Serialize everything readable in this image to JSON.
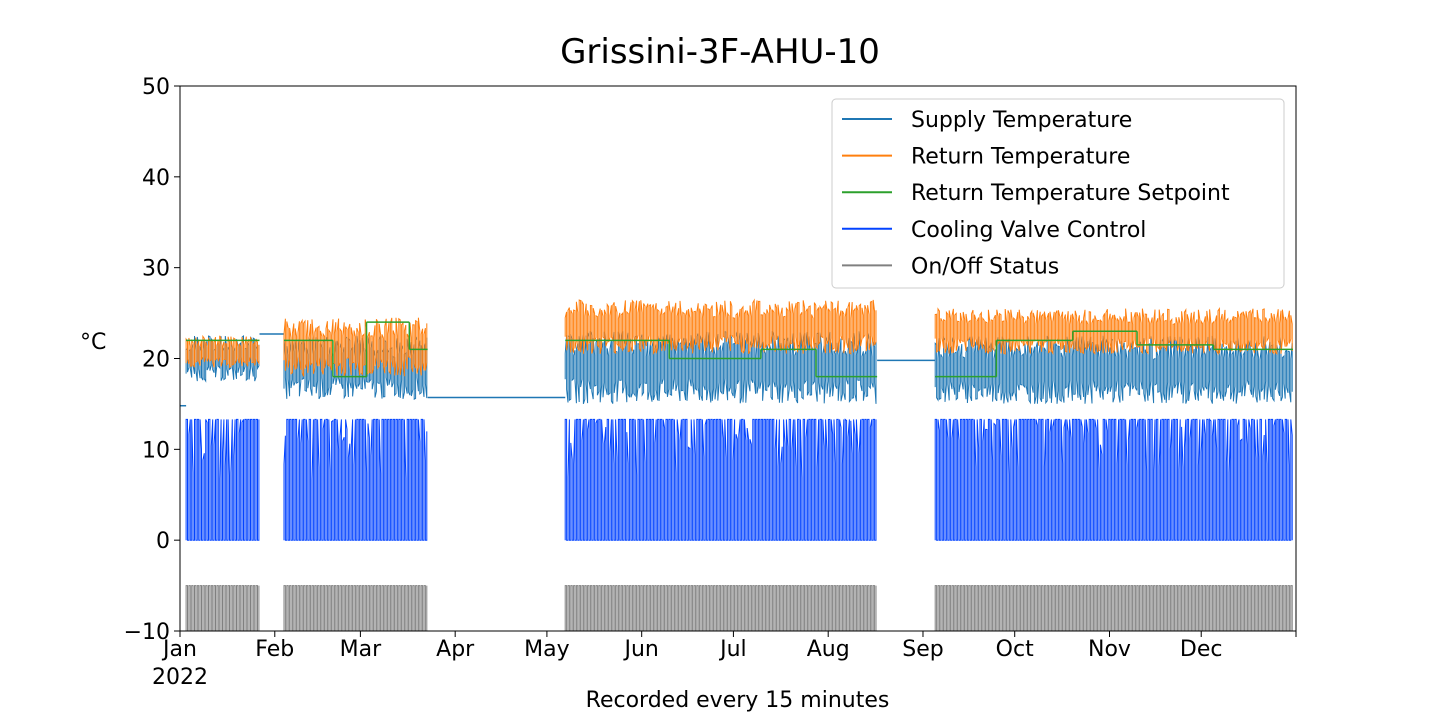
{
  "chart_data": {
    "type": "line",
    "title": "Grissini-3F-AHU-10",
    "xlabel": "Recorded every 15 minutes",
    "ylabel": "°C",
    "ylim": [
      -10,
      50
    ],
    "xlim": [
      "2022-01-01",
      "2022-12-31"
    ],
    "y_ticks": [
      "50",
      "40",
      "30",
      "20",
      "10",
      "0",
      "−10"
    ],
    "x_ticks": [
      {
        "date": "2022-01-01",
        "label": "Jan",
        "sublabel": "2022"
      },
      {
        "date": "2022-02-01",
        "label": "Feb"
      },
      {
        "date": "2022-03-01",
        "label": "Mar"
      },
      {
        "date": "2022-04-01",
        "label": "Apr"
      },
      {
        "date": "2022-05-01",
        "label": "May"
      },
      {
        "date": "2022-06-01",
        "label": "Jun"
      },
      {
        "date": "2022-07-01",
        "label": "Jul"
      },
      {
        "date": "2022-08-01",
        "label": "Aug"
      },
      {
        "date": "2022-09-01",
        "label": "Sep"
      },
      {
        "date": "2022-10-01",
        "label": "Oct"
      },
      {
        "date": "2022-11-01",
        "label": "Nov"
      },
      {
        "date": "2022-12-01",
        "label": "Dec"
      }
    ],
    "grid": false,
    "legend_position": "top-right",
    "series": [
      {
        "name": "Supply Temperature",
        "color": "#1f77b4",
        "band_segments": [
          {
            "start": "2022-01-03",
            "end": "2022-01-27",
            "low": 17.5,
            "high": 22.5
          },
          {
            "start": "2022-02-04",
            "end": "2022-03-23",
            "low": 15.5,
            "high": 22.5
          },
          {
            "start": "2022-05-07",
            "end": "2022-08-17",
            "low": 15.0,
            "high": 23.0
          },
          {
            "start": "2022-09-05",
            "end": "2022-12-31",
            "low": 15.0,
            "high": 22.5
          }
        ],
        "flat_segments": [
          {
            "start": "2022-01-01",
            "end": "2022-01-03",
            "value": 14.8
          },
          {
            "start": "2022-01-27",
            "end": "2022-02-04",
            "value": 22.7
          },
          {
            "start": "2022-03-23",
            "end": "2022-05-07",
            "value": 15.7
          },
          {
            "start": "2022-08-17",
            "end": "2022-09-05",
            "value": 19.8
          }
        ]
      },
      {
        "name": "Return Temperature",
        "color": "#ff7f0e",
        "band_segments": [
          {
            "start": "2022-01-03",
            "end": "2022-01-27",
            "low": 19.0,
            "high": 22.5
          },
          {
            "start": "2022-02-04",
            "end": "2022-03-23",
            "low": 18.0,
            "high": 24.5
          },
          {
            "start": "2022-05-07",
            "end": "2022-08-17",
            "low": 20.5,
            "high": 26.5
          },
          {
            "start": "2022-09-05",
            "end": "2022-12-31",
            "low": 20.5,
            "high": 25.5
          }
        ]
      },
      {
        "name": "Return Temperature Setpoint",
        "color": "#2ca02c",
        "steps": [
          {
            "start": "2022-01-03",
            "end": "2022-01-27",
            "value": 22
          },
          {
            "start": "2022-02-04",
            "end": "2022-02-20",
            "value": 22
          },
          {
            "start": "2022-02-20",
            "end": "2022-03-03",
            "value": 18
          },
          {
            "start": "2022-03-03",
            "end": "2022-03-17",
            "value": 24
          },
          {
            "start": "2022-03-17",
            "end": "2022-03-23",
            "value": 21
          },
          {
            "start": "2022-05-07",
            "end": "2022-06-10",
            "value": 22
          },
          {
            "start": "2022-06-10",
            "end": "2022-07-10",
            "value": 20
          },
          {
            "start": "2022-07-10",
            "end": "2022-07-28",
            "value": 21
          },
          {
            "start": "2022-07-28",
            "end": "2022-08-17",
            "value": 18
          },
          {
            "start": "2022-09-05",
            "end": "2022-09-25",
            "value": 18
          },
          {
            "start": "2022-09-25",
            "end": "2022-10-20",
            "value": 22
          },
          {
            "start": "2022-10-20",
            "end": "2022-11-10",
            "value": 23
          },
          {
            "start": "2022-11-10",
            "end": "2022-12-05",
            "value": 21.5
          },
          {
            "start": "2022-12-05",
            "end": "2022-12-31",
            "value": 21
          }
        ]
      },
      {
        "name": "Cooling Valve Control",
        "color": "#0343ff",
        "band_segments": [
          {
            "start": "2022-01-03",
            "end": "2022-01-27",
            "low": 0,
            "high": 13.3
          },
          {
            "start": "2022-02-04",
            "end": "2022-03-23",
            "low": 0,
            "high": 13.3
          },
          {
            "start": "2022-05-07",
            "end": "2022-08-17",
            "low": 0,
            "high": 13.3
          },
          {
            "start": "2022-09-05",
            "end": "2022-12-31",
            "low": 0,
            "high": 13.3
          }
        ]
      },
      {
        "name": "On/Off Status",
        "color": "#808080",
        "band_segments": [
          {
            "start": "2022-01-03",
            "end": "2022-01-27",
            "low": -10,
            "high": -5
          },
          {
            "start": "2022-02-04",
            "end": "2022-03-23",
            "low": -10,
            "high": -5
          },
          {
            "start": "2022-05-07",
            "end": "2022-08-17",
            "low": -10,
            "high": -5
          },
          {
            "start": "2022-09-05",
            "end": "2022-12-31",
            "low": -10,
            "high": -5
          }
        ]
      }
    ]
  }
}
